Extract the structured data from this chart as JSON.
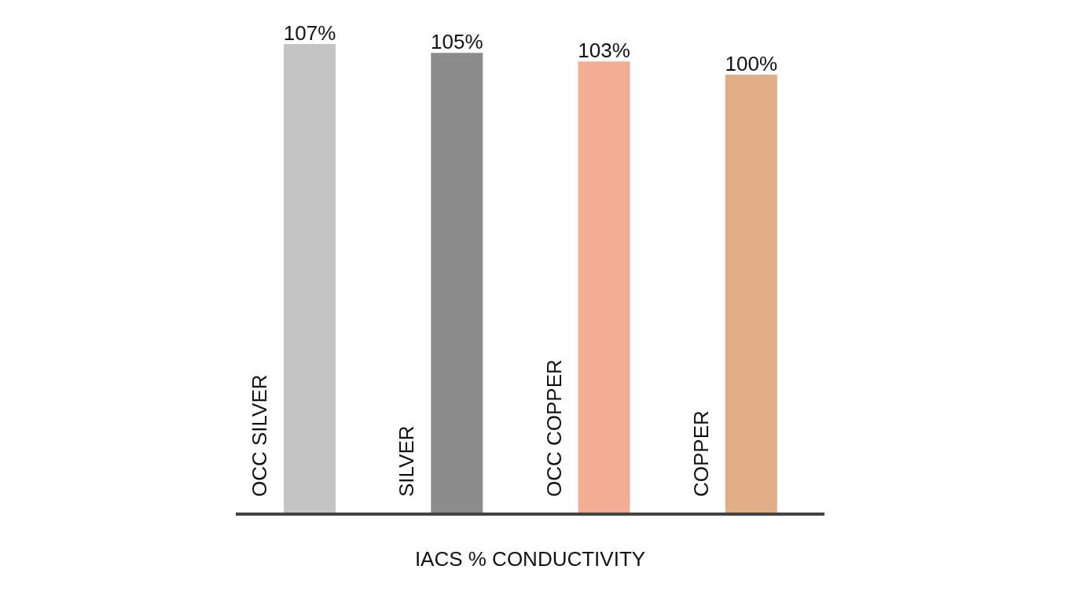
{
  "chart_data": {
    "type": "bar",
    "categories": [
      "OCC SILVER",
      "SILVER",
      "OCC COPPER",
      "COPPER"
    ],
    "values": [
      107,
      105,
      103,
      100
    ],
    "value_labels": [
      "107%",
      "105%",
      "103%",
      "100%"
    ],
    "colors": [
      "#c4c4c4",
      "#8c8c8c",
      "#f2ad95",
      "#e2ae88"
    ],
    "xlabel": "IACS % CONDUCTIVITY",
    "grid": false,
    "legend": false
  }
}
